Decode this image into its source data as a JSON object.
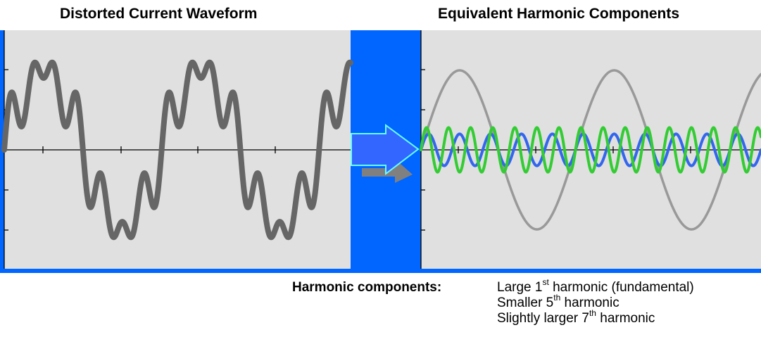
{
  "titles": {
    "left": "Distorted Current Waveform",
    "right": "Equivalent Harmonic Components"
  },
  "legend": {
    "heading": "Harmonic components:",
    "items": [
      {
        "prefix": "Large 1",
        "sup": "st",
        "suffix": " harmonic (fundamental)"
      },
      {
        "prefix": "Smaller 5",
        "sup": "th",
        "suffix": " harmonic"
      },
      {
        "prefix": "Slightly larger 7",
        "sup": "th",
        "suffix": " harmonic"
      }
    ]
  },
  "waveforms": {
    "distorted": {
      "color": "#666666",
      "fundamental_cycles": 2.2,
      "components": [
        {
          "harmonic": 1,
          "amplitude": 1.0
        },
        {
          "harmonic": 5,
          "amplitude": 0.2
        },
        {
          "harmonic": 7,
          "amplitude": 0.28
        }
      ]
    },
    "fundamental": {
      "color": "#999999",
      "harmonic": 1,
      "amplitude": 1.0
    },
    "fifth": {
      "color": "#3366ee",
      "harmonic": 5,
      "amplitude": 0.2
    },
    "seventh": {
      "color": "#33cc33",
      "harmonic": 7,
      "amplitude": 0.28
    }
  },
  "colors": {
    "band": "#0066ff",
    "panel": "#e0e0e0",
    "arrow_fill": "#3366ff",
    "arrow_outline": "#66ffff",
    "arrow_shadow": "#808080"
  }
}
